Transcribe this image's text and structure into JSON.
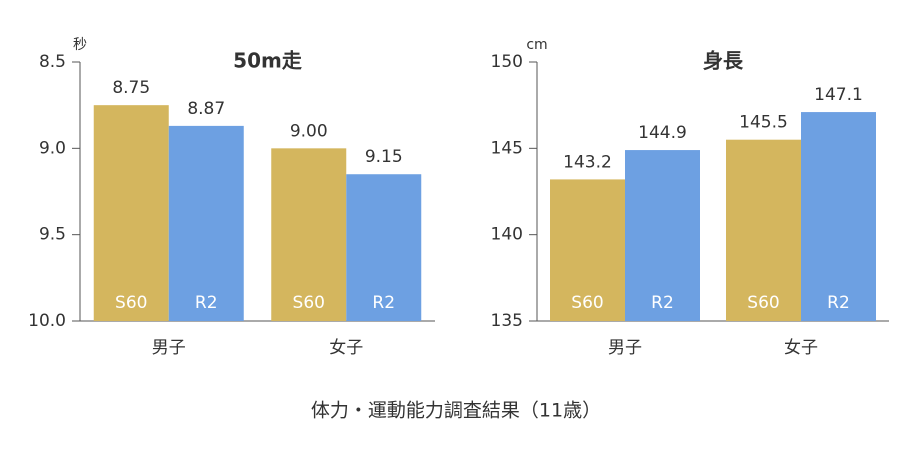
{
  "chart_data": [
    {
      "type": "bar",
      "title": "50m走",
      "y_unit": "秒",
      "categories": [
        "男子",
        "女子"
      ],
      "ylim": [
        10.0,
        8.5
      ],
      "yticks": [
        {
          "value": 10.0,
          "label": "10.0"
        },
        {
          "value": 9.5,
          "label": "9.5"
        },
        {
          "value": 9.0,
          "label": "9.0"
        },
        8.5
      ],
      "series": [
        {
          "name": "S60",
          "color": "#d4b65e",
          "values": [
            8.75,
            9.0
          ],
          "value_labels": [
            "8.75",
            "9.00"
          ]
        },
        {
          "name": "R2",
          "color": "#6da0e2",
          "values": [
            8.87,
            9.15
          ],
          "value_labels": [
            "8.87",
            "9.15"
          ]
        }
      ]
    },
    {
      "type": "bar",
      "title": "身長",
      "y_unit": "cm",
      "categories": [
        "男子",
        "女子"
      ],
      "ylim": [
        135,
        150
      ],
      "yticks": [
        135,
        140,
        145,
        150
      ],
      "series": [
        {
          "name": "S60",
          "color": "#d4b65e",
          "values": [
            143.2,
            145.5
          ]
        },
        {
          "name": "R2",
          "color": "#6da0e2",
          "values": [
            144.9,
            147.1
          ]
        }
      ]
    }
  ],
  "caption": "体力・運動能力調査結果（11歳）"
}
